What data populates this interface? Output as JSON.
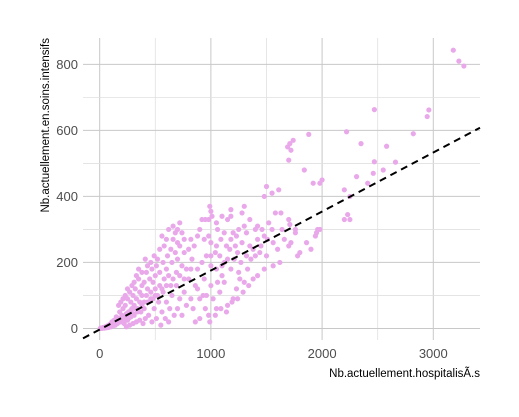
{
  "chart_data": {
    "type": "scatter",
    "title": "",
    "xlabel": "Nb.actuellement.hospitalisÃ.s",
    "ylabel": "Nb.actuellement.en.soins.intensifs",
    "xlim": [
      -150,
      3420
    ],
    "ylim": [
      -35,
      880
    ],
    "x_ticks": [
      0,
      1000,
      2000,
      3000
    ],
    "y_ticks": [
      0,
      200,
      400,
      600,
      800
    ],
    "x_tick_labels": [
      "0",
      "1000",
      "2000",
      "3000"
    ],
    "y_tick_labels": [
      "0",
      "200",
      "400",
      "600",
      "800"
    ],
    "grid": true,
    "legend": "none",
    "point_color": "#E9A8EA",
    "reference_line": {
      "style": "dashed",
      "color": "#000000",
      "x": [
        -150,
        3420
      ],
      "y": [
        -30,
        608
      ]
    },
    "series": [
      {
        "points": [
          [
            3180,
            843
          ],
          [
            3230,
            810
          ],
          [
            3275,
            795
          ],
          [
            2960,
            662
          ],
          [
            2945,
            642
          ],
          [
            2470,
            663
          ],
          [
            2820,
            590
          ],
          [
            2580,
            552
          ],
          [
            2220,
            596
          ],
          [
            2350,
            560
          ],
          [
            2470,
            505
          ],
          [
            2660,
            504
          ],
          [
            2310,
            460
          ],
          [
            2550,
            480
          ],
          [
            1880,
            588
          ],
          [
            1720,
            540
          ],
          [
            1710,
            560
          ],
          [
            1740,
            570
          ],
          [
            1690,
            550
          ],
          [
            1700,
            510
          ],
          [
            1840,
            480
          ],
          [
            2000,
            450
          ],
          [
            1920,
            440
          ],
          [
            1980,
            440
          ],
          [
            2200,
            420
          ],
          [
            2250,
            400
          ],
          [
            2230,
            345
          ],
          [
            2200,
            330
          ],
          [
            2250,
            330
          ],
          [
            2410,
            440
          ],
          [
            2460,
            470
          ],
          [
            1980,
            300
          ],
          [
            1940,
            280
          ],
          [
            1960,
            300
          ],
          [
            1500,
            430
          ],
          [
            1480,
            400
          ],
          [
            1550,
            410
          ],
          [
            1610,
            420
          ],
          [
            1630,
            350
          ],
          [
            1700,
            330
          ],
          [
            1710,
            315
          ],
          [
            1760,
            300
          ],
          [
            1860,
            260
          ],
          [
            1900,
            240
          ],
          [
            1950,
            290
          ],
          [
            1450,
            250
          ],
          [
            1500,
            220
          ],
          [
            1600,
            240
          ],
          [
            1550,
            300
          ],
          [
            1420,
            310
          ],
          [
            1400,
            300
          ],
          [
            1560,
            260
          ],
          [
            1510,
            270
          ],
          [
            1800,
            230
          ],
          [
            1250,
            300
          ],
          [
            1280,
            350
          ],
          [
            1300,
            370
          ],
          [
            1350,
            330
          ],
          [
            1300,
            310
          ],
          [
            1200,
            290
          ],
          [
            1150,
            330
          ],
          [
            1320,
            290
          ],
          [
            1180,
            340
          ],
          [
            1220,
            250
          ],
          [
            1240,
            230
          ],
          [
            1180,
            270
          ],
          [
            1210,
            210
          ],
          [
            1120,
            290
          ],
          [
            1090,
            270
          ],
          [
            1050,
            250
          ],
          [
            990,
            370
          ],
          [
            1000,
            355
          ],
          [
            1010,
            340
          ],
          [
            980,
            330
          ],
          [
            1050,
            320
          ],
          [
            950,
            330
          ],
          [
            1100,
            340
          ],
          [
            1180,
            360
          ],
          [
            900,
            300
          ],
          [
            920,
            330
          ],
          [
            880,
            280
          ],
          [
            940,
            270
          ],
          [
            1000,
            260
          ],
          [
            1060,
            300
          ],
          [
            1080,
            220
          ],
          [
            1050,
            180
          ],
          [
            1100,
            160
          ],
          [
            1000,
            190
          ],
          [
            960,
            220
          ],
          [
            920,
            200
          ],
          [
            850,
            250
          ],
          [
            820,
            270
          ],
          [
            800,
            240
          ],
          [
            830,
            210
          ],
          [
            780,
            180
          ],
          [
            760,
            230
          ],
          [
            720,
            250
          ],
          [
            700,
            210
          ],
          [
            700,
            260
          ],
          [
            680,
            230
          ],
          [
            650,
            200
          ],
          [
            660,
            270
          ],
          [
            640,
            240
          ],
          [
            610,
            220
          ],
          [
            600,
            180
          ],
          [
            580,
            250
          ],
          [
            570,
            200
          ],
          [
            540,
            170
          ],
          [
            520,
            210
          ],
          [
            500,
            160
          ],
          [
            510,
            190
          ],
          [
            480,
            140
          ],
          [
            470,
            180
          ],
          [
            450,
            150
          ],
          [
            430,
            120
          ],
          [
            420,
            170
          ],
          [
            400,
            140
          ],
          [
            380,
            100
          ],
          [
            380,
            130
          ],
          [
            360,
            110
          ],
          [
            350,
            150
          ],
          [
            330,
            90
          ],
          [
            320,
            120
          ],
          [
            310,
            70
          ],
          [
            300,
            100
          ],
          [
            290,
            60
          ],
          [
            280,
            80
          ],
          [
            260,
            50
          ],
          [
            250,
            90
          ],
          [
            240,
            40
          ],
          [
            230,
            70
          ],
          [
            220,
            30
          ],
          [
            210,
            60
          ],
          [
            200,
            40
          ],
          [
            190,
            20
          ],
          [
            180,
            50
          ],
          [
            170,
            30
          ],
          [
            160,
            15
          ],
          [
            150,
            35
          ],
          [
            140,
            10
          ],
          [
            130,
            25
          ],
          [
            120,
            8
          ],
          [
            110,
            20
          ],
          [
            100,
            5
          ],
          [
            90,
            12
          ],
          [
            80,
            3
          ],
          [
            70,
            8
          ],
          [
            60,
            2
          ],
          [
            50,
            5
          ],
          [
            40,
            1
          ],
          [
            30,
            3
          ],
          [
            20,
            0
          ],
          [
            10,
            1
          ],
          [
            5,
            0
          ],
          [
            880,
            120
          ],
          [
            900,
            90
          ],
          [
            930,
            100
          ],
          [
            950,
            60
          ],
          [
            1000,
            130
          ],
          [
            1020,
            90
          ],
          [
            1080,
            110
          ],
          [
            1120,
            140
          ],
          [
            1150,
            70
          ],
          [
            1180,
            180
          ],
          [
            1200,
            90
          ],
          [
            1230,
            120
          ],
          [
            1250,
            170
          ],
          [
            1260,
            150
          ],
          [
            1270,
            200
          ],
          [
            1300,
            140
          ],
          [
            1320,
            220
          ],
          [
            1350,
            250
          ],
          [
            1360,
            210
          ],
          [
            1380,
            240
          ],
          [
            1150,
            210
          ],
          [
            1170,
            240
          ],
          [
            1400,
            220
          ],
          [
            1420,
            270
          ],
          [
            1440,
            230
          ],
          [
            820,
            90
          ],
          [
            840,
            60
          ],
          [
            860,
            130
          ],
          [
            780,
            70
          ],
          [
            760,
            110
          ],
          [
            740,
            40
          ],
          [
            720,
            90
          ],
          [
            700,
            60
          ],
          [
            690,
            130
          ],
          [
            670,
            40
          ],
          [
            650,
            100
          ],
          [
            630,
            60
          ],
          [
            620,
            20
          ],
          [
            600,
            80
          ],
          [
            590,
            30
          ],
          [
            570,
            110
          ],
          [
            560,
            50
          ],
          [
            550,
            10
          ],
          [
            530,
            80
          ],
          [
            510,
            30
          ],
          [
            500,
            100
          ],
          [
            490,
            60
          ],
          [
            470,
            20
          ],
          [
            460,
            90
          ],
          [
            440,
            40
          ],
          [
            430,
            80
          ],
          [
            410,
            30
          ],
          [
            400,
            60
          ],
          [
            390,
            15
          ],
          [
            370,
            50
          ],
          [
            360,
            25
          ],
          [
            340,
            60
          ],
          [
            330,
            20
          ],
          [
            310,
            40
          ],
          [
            300,
            15
          ],
          [
            280,
            35
          ],
          [
            270,
            10
          ],
          [
            250,
            25
          ],
          [
            240,
            5
          ],
          [
            220,
            15
          ],
          [
            800,
            150
          ],
          [
            820,
            180
          ],
          [
            760,
            150
          ],
          [
            740,
            190
          ],
          [
            720,
            160
          ],
          [
            690,
            170
          ],
          [
            660,
            150
          ],
          [
            640,
            130
          ],
          [
            620,
            160
          ],
          [
            600,
            130
          ],
          [
            580,
            150
          ],
          [
            560,
            120
          ],
          [
            540,
            130
          ],
          [
            520,
            100
          ],
          [
            500,
            120
          ],
          [
            480,
            90
          ],
          [
            460,
            110
          ],
          [
            440,
            80
          ],
          [
            420,
            100
          ],
          [
            400,
            80
          ],
          [
            380,
            70
          ],
          [
            360,
            80
          ],
          [
            340,
            50
          ],
          [
            320,
            60
          ],
          [
            300,
            45
          ],
          [
            280,
            55
          ],
          [
            260,
            30
          ],
          [
            240,
            45
          ],
          [
            220,
            25
          ],
          [
            200,
            30
          ],
          [
            1050,
            60
          ],
          [
            980,
            40
          ],
          [
            900,
            30
          ],
          [
            860,
            20
          ],
          [
            960,
            100
          ],
          [
            1060,
            140
          ],
          [
            1100,
            190
          ],
          [
            1000,
            220
          ],
          [
            1140,
            250
          ],
          [
            1230,
            280
          ],
          [
            1330,
            180
          ],
          [
            1280,
            260
          ],
          [
            1460,
            300
          ],
          [
            1480,
            280
          ],
          [
            1520,
            320
          ],
          [
            1580,
            350
          ],
          [
            1640,
            300
          ],
          [
            1660,
            270
          ],
          [
            1720,
            260
          ],
          [
            1760,
            290
          ],
          [
            1120,
            200
          ],
          [
            940,
            150
          ],
          [
            880,
            180
          ],
          [
            1040,
            230
          ],
          [
            980,
            280
          ],
          [
            760,
            270
          ],
          [
            740,
            290
          ],
          [
            700,
            300
          ],
          [
            680,
            290
          ],
          [
            720,
            320
          ],
          [
            600,
            270
          ],
          [
            560,
            280
          ],
          [
            620,
            300
          ],
          [
            660,
            310
          ],
          [
            540,
            240
          ],
          [
            490,
            220
          ],
          [
            460,
            200
          ],
          [
            430,
            190
          ],
          [
            410,
            210
          ],
          [
            380,
            170
          ],
          [
            350,
            180
          ],
          [
            330,
            160
          ],
          [
            310,
            140
          ],
          [
            290,
            130
          ],
          [
            270,
            110
          ],
          [
            250,
            120
          ],
          [
            230,
            100
          ],
          [
            210,
            90
          ],
          [
            190,
            80
          ],
          [
            170,
            70
          ],
          [
            1700,
            250
          ],
          [
            1780,
            220
          ],
          [
            1620,
            200
          ],
          [
            1560,
            190
          ],
          [
            1480,
            180
          ],
          [
            1420,
            160
          ],
          [
            1380,
            150
          ],
          [
            1340,
            130
          ],
          [
            1290,
            110
          ],
          [
            1240,
            90
          ],
          [
            1190,
            80
          ],
          [
            1140,
            50
          ],
          [
            1090,
            60
          ],
          [
            1040,
            40
          ],
          [
            990,
            20
          ]
        ]
      }
    ]
  }
}
